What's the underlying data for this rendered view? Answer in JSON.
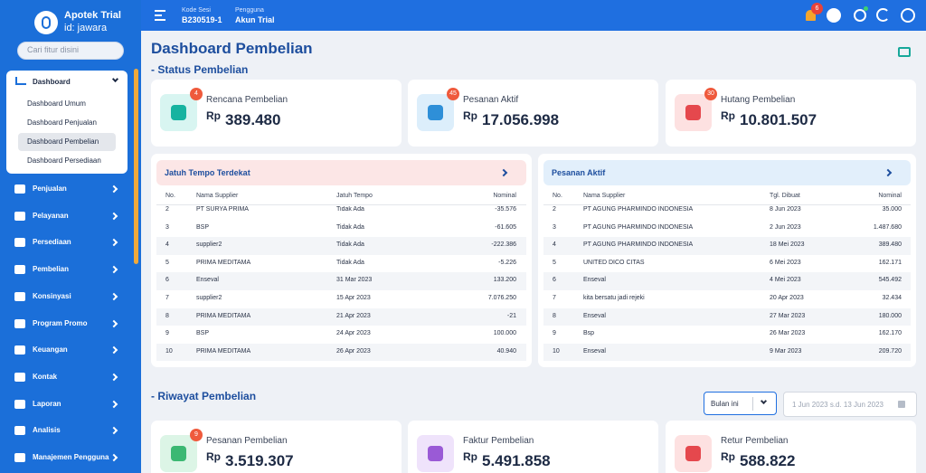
{
  "sidebar": {
    "app_name": "Apotek Trial",
    "app_id": "id: jawara",
    "search_placeholder": "Cari fitur disini",
    "dashboard": {
      "label": "Dashboard",
      "items": [
        "Dashboard Umum",
        "Dashboard Penjualan",
        "Dashboard Pembelian",
        "Dashboard Persediaan"
      ]
    },
    "menu": [
      "Penjualan",
      "Pelayanan",
      "Persediaan",
      "Pembelian",
      "Konsinyasi",
      "Program Promo",
      "Keuangan",
      "Kontak",
      "Laporan",
      "Analisis",
      "Manajemen Pengguna"
    ]
  },
  "topbar": {
    "session_label": "Kode Sesi",
    "session_value": "B230519-1",
    "user_label": "Pengguna",
    "user_value": "Akun Trial",
    "notification_count": 6
  },
  "page": {
    "title": "Dashboard Pembelian",
    "status_section": "- Status Pembelian",
    "status_cards": [
      {
        "label": "Rencana Pembelian",
        "badge": 4,
        "currency": "Rp",
        "amount": "389.480"
      },
      {
        "label": "Pesanan Aktif",
        "badge": 45,
        "currency": "Rp",
        "amount": "17.056.998"
      },
      {
        "label": "Hutang Pembelian",
        "badge": 30,
        "currency": "Rp",
        "amount": "10.801.507"
      }
    ],
    "tables": [
      {
        "title": "Jatuh Tempo Terdekat",
        "columns": [
          "No.",
          "Nama Supplier",
          "Jatuh Tempo",
          "Nominal"
        ],
        "rows": [
          [
            2,
            "PT SURYA PRIMA",
            "Tidak Ada",
            "-35.576"
          ],
          [
            3,
            "BSP",
            "Tidak Ada",
            "-61.605"
          ],
          [
            4,
            "supplier2",
            "Tidak Ada",
            "-222.386"
          ],
          [
            5,
            "PRIMA MEDITAMA",
            "Tidak Ada",
            "-5.226"
          ],
          [
            6,
            "Enseval",
            "31 Mar 2023",
            "133.200"
          ],
          [
            7,
            "supplier2",
            "15 Apr 2023",
            "7.076.250"
          ],
          [
            8,
            "PRIMA MEDITAMA",
            "21 Apr 2023",
            "-21"
          ],
          [
            9,
            "BSP",
            "24 Apr 2023",
            "100.000"
          ],
          [
            10,
            "PRIMA MEDITAMA",
            "26 Apr 2023",
            "40.940"
          ]
        ]
      },
      {
        "title": "Pesanan Aktif",
        "columns": [
          "No.",
          "Nama Supplier",
          "Tgl. Dibuat",
          "Nominal"
        ],
        "rows": [
          [
            2,
            "PT AGUNG PHARMINDO INDONESIA",
            "8 Jun 2023",
            "35.000"
          ],
          [
            3,
            "PT AGUNG PHARMINDO INDONESIA",
            "2 Jun 2023",
            "1.487.680"
          ],
          [
            4,
            "PT AGUNG PHARMINDO INDONESIA",
            "18 Mei 2023",
            "389.480"
          ],
          [
            5,
            "UNITED DICO CITAS",
            "6 Mei 2023",
            "162.171"
          ],
          [
            6,
            "Enseval",
            "4 Mei 2023",
            "545.492"
          ],
          [
            7,
            "kita bersatu jadi rejeki",
            "20 Apr 2023",
            "32.434"
          ],
          [
            8,
            "Enseval",
            "27 Mar 2023",
            "180.000"
          ],
          [
            9,
            "Bsp",
            "26 Mar 2023",
            "162.170"
          ],
          [
            10,
            "Enseval",
            "9 Mar 2023",
            "209.720"
          ]
        ]
      }
    ],
    "history_section": "- Riwayat Pembelian",
    "period_select": "Bulan ini",
    "date_range": "1 Jun 2023 s.d. 13 Jun 2023",
    "history_cards": [
      {
        "label": "Pesanan Pembelian",
        "badge": 9,
        "currency": "Rp",
        "amount": "3.519.307"
      },
      {
        "label": "Faktur Pembelian",
        "currency": "Rp",
        "amount": "5.491.858"
      },
      {
        "label": "Retur Pembelian",
        "currency": "Rp",
        "amount": "588.822"
      }
    ]
  }
}
